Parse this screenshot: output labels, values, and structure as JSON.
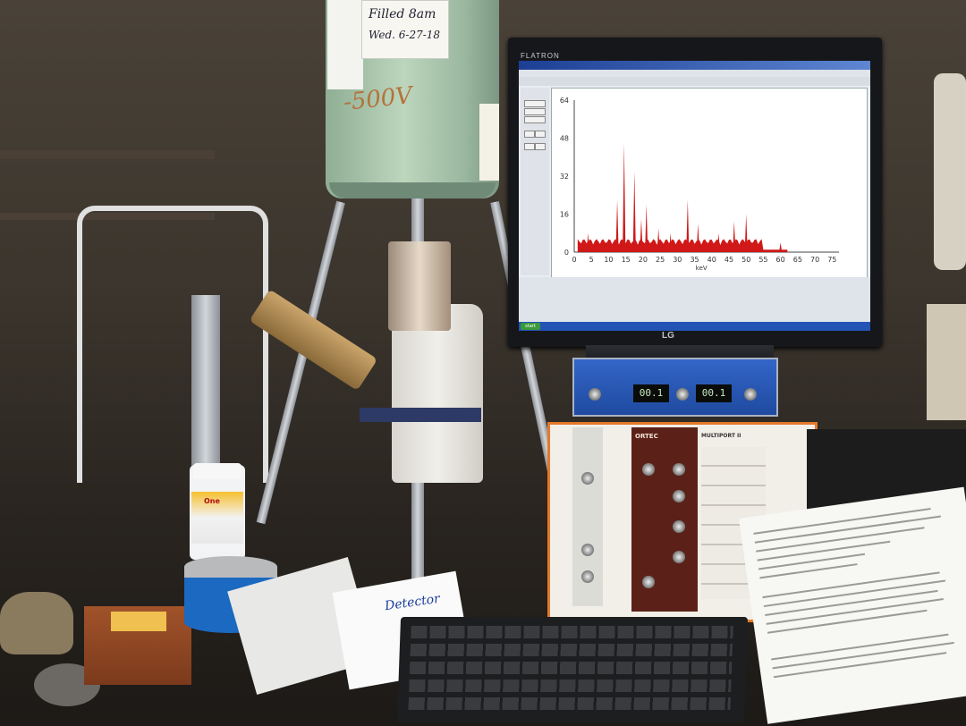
{
  "dewar": {
    "note_line1": "Filled 8am",
    "note_line2": "Wed. 6-27-18",
    "voltage_note": "-500V"
  },
  "monitor": {
    "brand": "FLATRON",
    "logo": "LG"
  },
  "spectrum_screen": {
    "start_button": "start",
    "y_ticks": [
      "64",
      "48",
      "32",
      "16",
      "0"
    ],
    "x_ticks": [
      "0",
      "5",
      "10",
      "15",
      "20",
      "25",
      "30",
      "35",
      "40",
      "45",
      "50",
      "55",
      "60",
      "65",
      "70",
      "75"
    ],
    "x_unit": "keV",
    "trace_color": "#d01818",
    "peaks": [
      {
        "kev": 4,
        "counts": 8
      },
      {
        "kev": 10.5,
        "counts": 5
      },
      {
        "kev": 12.5,
        "counts": 22
      },
      {
        "kev": 14.5,
        "counts": 46
      },
      {
        "kev": 17.5,
        "counts": 34
      },
      {
        "kev": 19.5,
        "counts": 14
      },
      {
        "kev": 21,
        "counts": 20
      },
      {
        "kev": 24.5,
        "counts": 10
      },
      {
        "kev": 28,
        "counts": 8
      },
      {
        "kev": 33,
        "counts": 22
      },
      {
        "kev": 36,
        "counts": 12
      },
      {
        "kev": 42,
        "counts": 8
      },
      {
        "kev": 46.5,
        "counts": 13
      },
      {
        "kev": 50,
        "counts": 16
      },
      {
        "kev": 53,
        "counts": 6
      },
      {
        "kev": 60,
        "counts": 4
      }
    ]
  },
  "counter": {
    "display_left": "00.1",
    "display_right": "00.1"
  },
  "nim_bin": {
    "amp_title": "ORTEC",
    "multiport_label": "MULTIPORT II"
  },
  "desk": {
    "bottle_text": "One",
    "detector_note": "Detector"
  }
}
